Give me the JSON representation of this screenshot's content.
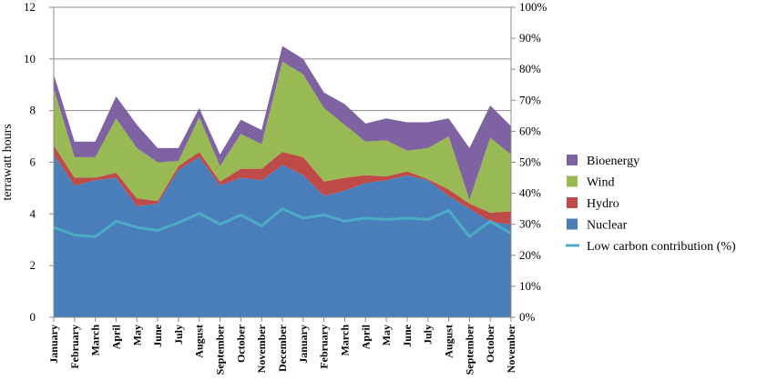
{
  "chart_data": {
    "type": "area",
    "stacked": true,
    "categories": [
      "January",
      "February",
      "March",
      "April",
      "May",
      "June",
      "July",
      "August",
      "September",
      "October",
      "November",
      "December",
      "January",
      "February",
      "March",
      "April",
      "May",
      "June",
      "July",
      "August",
      "September",
      "October",
      "November"
    ],
    "series": [
      {
        "name": "Nuclear",
        "color": "#4a7ebb",
        "values": [
          6.3,
          5.1,
          5.3,
          5.4,
          4.3,
          4.4,
          5.7,
          6.2,
          5.1,
          5.4,
          5.3,
          5.9,
          5.5,
          4.7,
          4.9,
          5.2,
          5.3,
          5.5,
          5.3,
          4.7,
          4.2,
          3.7,
          3.6
        ]
      },
      {
        "name": "Hydro",
        "color": "#be4b48",
        "values": [
          0.35,
          0.3,
          0.1,
          0.2,
          0.3,
          0.1,
          0.15,
          0.2,
          0.15,
          0.35,
          0.45,
          0.5,
          0.7,
          0.55,
          0.5,
          0.3,
          0.15,
          0.15,
          0.05,
          0.25,
          0.2,
          0.35,
          0.5
        ]
      },
      {
        "name": "Wind",
        "color": "#98b954",
        "values": [
          2.2,
          0.8,
          0.8,
          2.1,
          1.95,
          1.5,
          0.2,
          1.35,
          0.6,
          1.35,
          0.95,
          3.5,
          3.2,
          2.85,
          2.05,
          1.3,
          1.4,
          0.8,
          1.2,
          2.05,
          0.15,
          2.9,
          2.2
        ]
      },
      {
        "name": "Bioenergy",
        "color": "#7e62a1",
        "values": [
          0.55,
          0.6,
          0.6,
          0.85,
          0.9,
          0.55,
          0.5,
          0.35,
          0.45,
          0.55,
          0.55,
          0.6,
          0.6,
          0.6,
          0.8,
          0.7,
          0.85,
          1.1,
          1.0,
          0.7,
          2.0,
          1.25,
          1.1
        ]
      }
    ],
    "line_series": {
      "name": "Low carbon contribution (%)",
      "color": "#4bacc6",
      "axis": "right",
      "values": [
        29,
        26.5,
        26,
        31,
        29,
        28,
        30.5,
        33.5,
        30,
        33,
        29.5,
        35,
        32,
        33,
        31,
        32,
        31.5,
        32,
        31.5,
        34.5,
        26,
        31,
        27
      ]
    },
    "title": "",
    "xlabel": "",
    "ylabel": "terrawatt hours",
    "ylim": [
      0,
      12
    ],
    "y_ticks": [
      "0",
      "2",
      "4",
      "6",
      "8",
      "10",
      "12"
    ],
    "y2lim": [
      0,
      100
    ],
    "y2_ticks": [
      "0%",
      "10%",
      "20%",
      "30%",
      "40%",
      "50%",
      "60%",
      "70%",
      "80%",
      "90%",
      "100%"
    ],
    "grid": true,
    "legend_position": "right",
    "legend": [
      {
        "label": "Bioenergy",
        "color": "#7e62a1",
        "kind": "area"
      },
      {
        "label": "Wind",
        "color": "#98b954",
        "kind": "area"
      },
      {
        "label": "Hydro",
        "color": "#be4b48",
        "kind": "area"
      },
      {
        "label": "Nuclear",
        "color": "#4a7ebb",
        "kind": "area"
      },
      {
        "label": "Low carbon contribution (%)",
        "color": "#4bacc6",
        "kind": "line"
      }
    ]
  }
}
